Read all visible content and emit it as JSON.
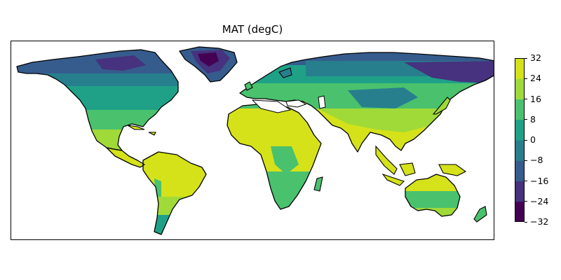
{
  "title": "MAT (degC)",
  "colorbar": {
    "ticks": [
      "32",
      "24",
      "16",
      "8",
      "0",
      "−8",
      "−16",
      "−24",
      "−32"
    ],
    "range": [
      -32,
      32
    ],
    "colors": [
      "#440154",
      "#46327e",
      "#365c8d",
      "#277f8e",
      "#1fa187",
      "#4ac16d",
      "#a0da39",
      "#d5e21a"
    ]
  },
  "map": {
    "projection": "plate carree",
    "ocean_color": "#ffffff",
    "coastline_color": "#000000"
  }
}
